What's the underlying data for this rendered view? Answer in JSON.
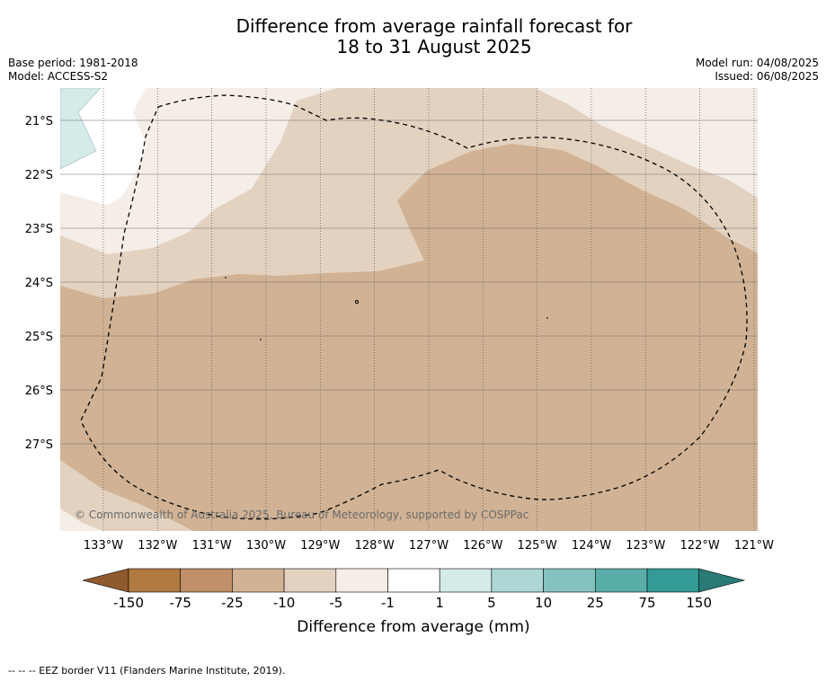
{
  "title_line1": "Difference from average rainfall forecast for",
  "title_line2": "18 to 31 August 2025",
  "base_period": "Base period: 1981-2018",
  "model": "Model: ACCESS-S2",
  "model_run": "Model run: 04/08/2025",
  "issued": "Issued: 06/08/2025",
  "copyright": "© Commonwealth of Australia 2025, Bureau of Meteorology, supported by COSPPac",
  "lon_ticks": [
    "133°W",
    "132°W",
    "131°W",
    "130°W",
    "129°W",
    "128°W",
    "127°W",
    "126°W",
    "125°W",
    "124°W",
    "123°W",
    "122°W",
    "121°W"
  ],
  "lat_ticks": [
    "21°S",
    "22°S",
    "23°S",
    "24°S",
    "25°S",
    "26°S",
    "27°S"
  ],
  "legend": {
    "bounds": [
      "-150",
      "-75",
      "-25",
      "-10",
      "-5",
      "-1",
      "1",
      "5",
      "10",
      "25",
      "75",
      "150"
    ],
    "colors": [
      "#8f5a2e",
      "#b07a40",
      "#c09068",
      "#d1b294",
      "#e3d2c0",
      "#f5ede7",
      "#ffffff",
      "#d4ebea",
      "#acd7d5",
      "#84c2bf",
      "#5aaeaa",
      "#339a95",
      "#2a7b78"
    ],
    "label": "Difference from average (mm)"
  },
  "footnote": "-- -- -- EEZ border V11 (Flanders Marine Institute, 2019)."
}
